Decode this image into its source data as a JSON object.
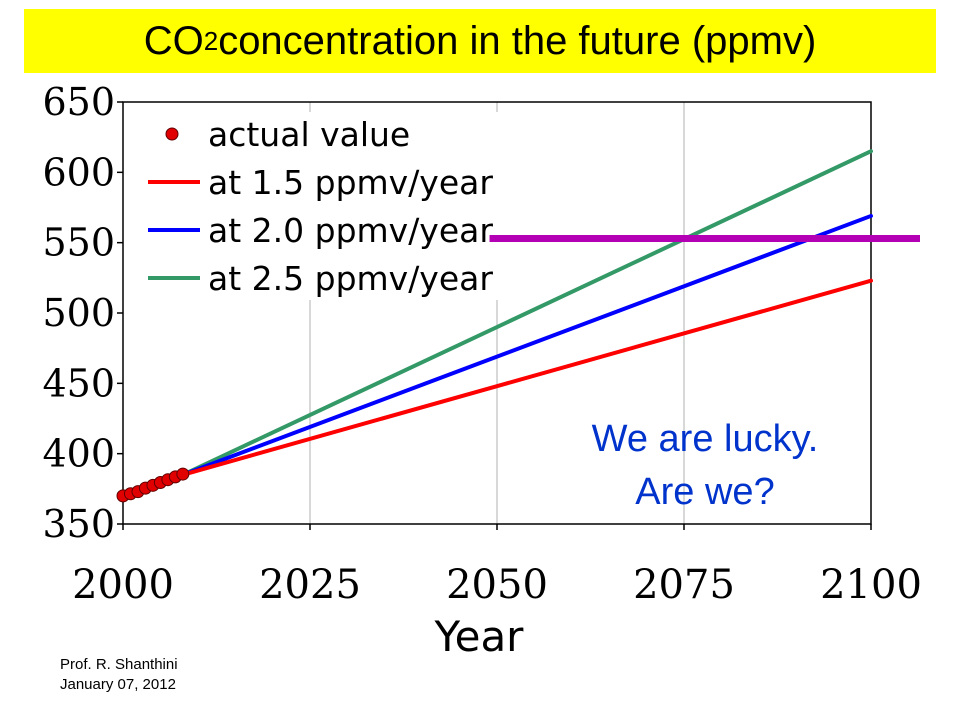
{
  "slide": {
    "title_prefix": "CO",
    "title_sub": "2",
    "title_suffix": " concentration in the future (ppmv)",
    "title_bg": "#ffff00",
    "annotation_line1": "We are lucky.",
    "annotation_line2": "Are we?",
    "annotation_color": "#0033cc",
    "footer_line1": "Prof. R. Shanthini",
    "footer_line2": "January 07, 2012"
  },
  "chart_data": {
    "type": "line",
    "xlabel": "Year",
    "ylabel": "",
    "xlim": [
      2000,
      2100
    ],
    "ylim": [
      350,
      650
    ],
    "xticks": [
      2000,
      2025,
      2050,
      2075,
      2100
    ],
    "yticks": [
      350,
      400,
      450,
      500,
      550,
      600,
      650
    ],
    "grid": "vertical",
    "legend_position": "top-left",
    "series": [
      {
        "name": "actual value",
        "kind": "scatter",
        "color": "#e00000",
        "x": [
          2000,
          2001,
          2002,
          2003,
          2004,
          2005,
          2006,
          2007,
          2008
        ],
        "y": [
          370,
          371.5,
          373,
          375.5,
          377.5,
          379.5,
          381.5,
          383.5,
          385.5
        ]
      },
      {
        "name": "at 1.5 ppmv/year",
        "kind": "line",
        "color": "#ff0000",
        "x": [
          2008,
          2100
        ],
        "y": [
          385,
          523
        ]
      },
      {
        "name": "at 2.0 ppmv/year",
        "kind": "line",
        "color": "#0000ff",
        "x": [
          2008,
          2100
        ],
        "y": [
          385,
          569
        ]
      },
      {
        "name": "at 2.5 ppmv/year",
        "kind": "line",
        "color": "#339966",
        "x": [
          2008,
          2100
        ],
        "y": [
          385,
          615
        ]
      }
    ],
    "reference_line": {
      "y": 553,
      "x_start": 2049,
      "color": "#b400b4"
    }
  }
}
